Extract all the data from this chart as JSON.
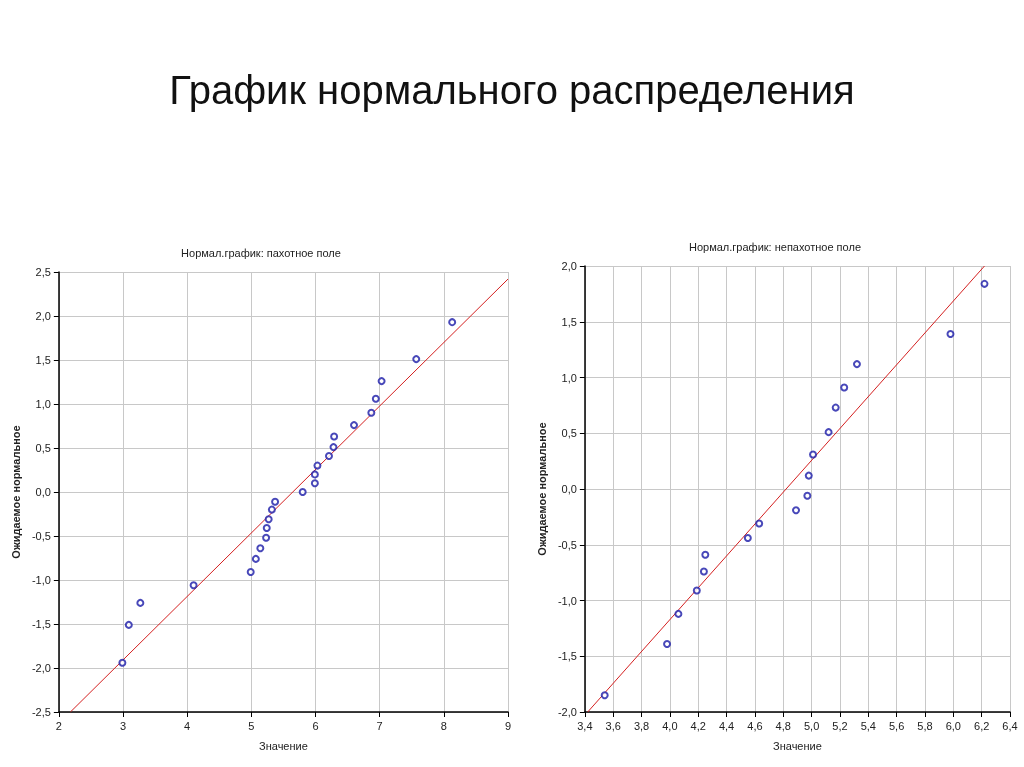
{
  "chart_data": [
    {
      "type": "scatter",
      "title": "Нормал.график: пахотное поле",
      "xlabel": "Значение",
      "ylabel": "Ожидаемое нормальное",
      "annotations": [
        "График нормального распределения"
      ],
      "xlim": [
        2,
        9
      ],
      "ylim": [
        -2.5,
        2.5
      ],
      "xticks": [
        2,
        3,
        4,
        5,
        6,
        7,
        8,
        9
      ],
      "yticks": [
        {
          "value": -2.5,
          "label": "-2,5"
        },
        {
          "value": -2,
          "label": "-2,0"
        },
        {
          "value": -1.5,
          "label": "-1,5"
        },
        {
          "value": -1,
          "label": "-1,0"
        },
        {
          "value": -0.5,
          "label": "-0,5"
        },
        {
          "value": 0,
          "label": "0,0"
        },
        {
          "value": 0.5,
          "label": "0,5"
        },
        {
          "value": 1,
          "label": "1,0"
        },
        {
          "value": 1.5,
          "label": "1,5"
        },
        {
          "value": 2,
          "label": "2,0"
        },
        {
          "value": 2.5,
          "label": "2,5"
        }
      ],
      "grid": true,
      "series": [
        {
          "marker": "circle",
          "color": "#1a1aa8",
          "x": [
            2.99,
            3.09,
            3.27,
            4.1,
            4.99,
            5.07,
            5.14,
            5.23,
            5.24,
            5.27,
            5.32,
            5.37,
            5.8,
            5.99,
            5.99,
            6.03,
            6.21,
            6.28,
            6.29,
            6.6,
            6.87,
            6.94,
            7.03,
            7.57,
            8.13
          ],
          "values": [
            -1.94,
            -1.51,
            -1.26,
            -1.06,
            -0.91,
            -0.76,
            -0.64,
            -0.52,
            -0.41,
            -0.31,
            -0.2,
            -0.11,
            0.0,
            0.1,
            0.2,
            0.3,
            0.41,
            0.51,
            0.63,
            0.76,
            0.9,
            1.06,
            1.26,
            1.51,
            1.93
          ]
        },
        {
          "type": "line",
          "marker": "none",
          "color": "#d42020",
          "x": [
            2.18,
            9
          ],
          "values": [
            -2.5,
            2.42
          ]
        }
      ]
    },
    {
      "type": "scatter",
      "title": "Нормал.график: непахотное поле",
      "xlabel": "Значение",
      "ylabel": "Ожидаемое нормальное",
      "xlim": [
        3.4,
        6.4
      ],
      "ylim": [
        -2,
        2
      ],
      "xticks": [
        {
          "value": 3.4,
          "label": "3,4"
        },
        {
          "value": 3.6,
          "label": "3,6"
        },
        {
          "value": 3.8,
          "label": "3,8"
        },
        {
          "value": 4,
          "label": "4,0"
        },
        {
          "value": 4.2,
          "label": "4,2"
        },
        {
          "value": 4.4,
          "label": "4,4"
        },
        {
          "value": 4.6,
          "label": "4,6"
        },
        {
          "value": 4.8,
          "label": "4,8"
        },
        {
          "value": 5,
          "label": "5,0"
        },
        {
          "value": 5.2,
          "label": "5,2"
        },
        {
          "value": 5.4,
          "label": "5,4"
        },
        {
          "value": 5.6,
          "label": "5,6"
        },
        {
          "value": 5.8,
          "label": "5,8"
        },
        {
          "value": 6,
          "label": "6,0"
        },
        {
          "value": 6.2,
          "label": "6,2"
        },
        {
          "value": 6.4,
          "label": "6,4"
        }
      ],
      "yticks": [
        {
          "value": -2,
          "label": "-2,0"
        },
        {
          "value": -1.5,
          "label": "-1,5"
        },
        {
          "value": -1,
          "label": "-1,0"
        },
        {
          "value": -0.5,
          "label": "-0,5"
        },
        {
          "value": 0,
          "label": "0,0"
        },
        {
          "value": 0.5,
          "label": "0,5"
        },
        {
          "value": 1,
          "label": "1,0"
        },
        {
          "value": 1.5,
          "label": "1,5"
        },
        {
          "value": 2,
          "label": "2,0"
        }
      ],
      "grid": true,
      "series": [
        {
          "marker": "circle",
          "color": "#1a1aa8",
          "x": [
            3.54,
            3.98,
            4.06,
            4.19,
            4.24,
            4.25,
            4.55,
            4.63,
            4.89,
            4.97,
            4.98,
            5.01,
            5.12,
            5.17,
            5.23,
            5.32,
            5.98,
            6.22
          ],
          "values": [
            -1.85,
            -1.39,
            -1.12,
            -0.91,
            -0.74,
            -0.59,
            -0.44,
            -0.31,
            -0.19,
            -0.06,
            0.12,
            0.31,
            0.51,
            0.73,
            0.91,
            1.12,
            1.39,
            1.84
          ]
        },
        {
          "type": "line",
          "marker": "none",
          "color": "#d42020",
          "x": [
            3.42,
            6.22
          ],
          "values": [
            -2.0,
            2.0
          ]
        }
      ]
    }
  ]
}
